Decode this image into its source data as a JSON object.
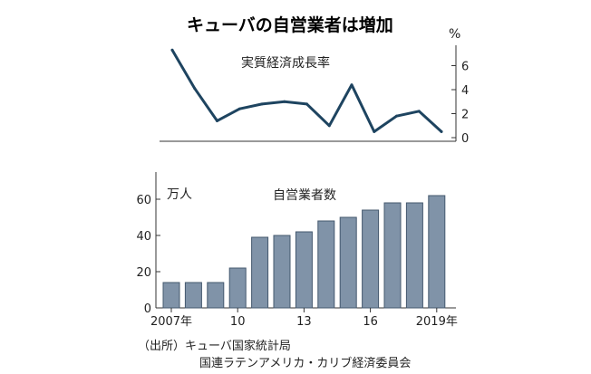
{
  "title": "キューバの自営業者は増加",
  "source_lines": [
    "（出所）キューバ国家統計局",
    "国連ラテンアメリカ・カリブ経済委員会"
  ],
  "colors": {
    "line": "#1e4460",
    "bar": "#8093a8",
    "bar_edge": "#44586e",
    "axis": "#333333"
  },
  "chart_data": [
    {
      "type": "line",
      "title": "実質経済成長率",
      "unit": "%",
      "x": [
        2007,
        2008,
        2009,
        2010,
        2011,
        2012,
        2013,
        2014,
        2015,
        2016,
        2017,
        2018,
        2019
      ],
      "values": [
        7.3,
        4.1,
        1.4,
        2.4,
        2.8,
        3.0,
        2.8,
        1.0,
        4.4,
        0.5,
        1.8,
        2.2,
        0.5
      ],
      "ylim": [
        0,
        8
      ],
      "yticks": [
        "0",
        "2",
        "4",
        "6"
      ],
      "grid": false
    },
    {
      "type": "bar",
      "title": "自営業者数",
      "unit": "万人",
      "x": [
        2007,
        2008,
        2009,
        2010,
        2011,
        2012,
        2013,
        2014,
        2015,
        2016,
        2017,
        2018,
        2019
      ],
      "values": [
        14,
        14,
        14,
        22,
        39,
        40,
        42,
        48,
        50,
        54,
        58,
        58,
        62
      ],
      "ylim": [
        0,
        70
      ],
      "yticks": [
        "0",
        "20",
        "40",
        "60"
      ],
      "xtick_labels": [
        "2007年",
        "10",
        "13",
        "16",
        "2019年"
      ],
      "grid": false
    }
  ]
}
